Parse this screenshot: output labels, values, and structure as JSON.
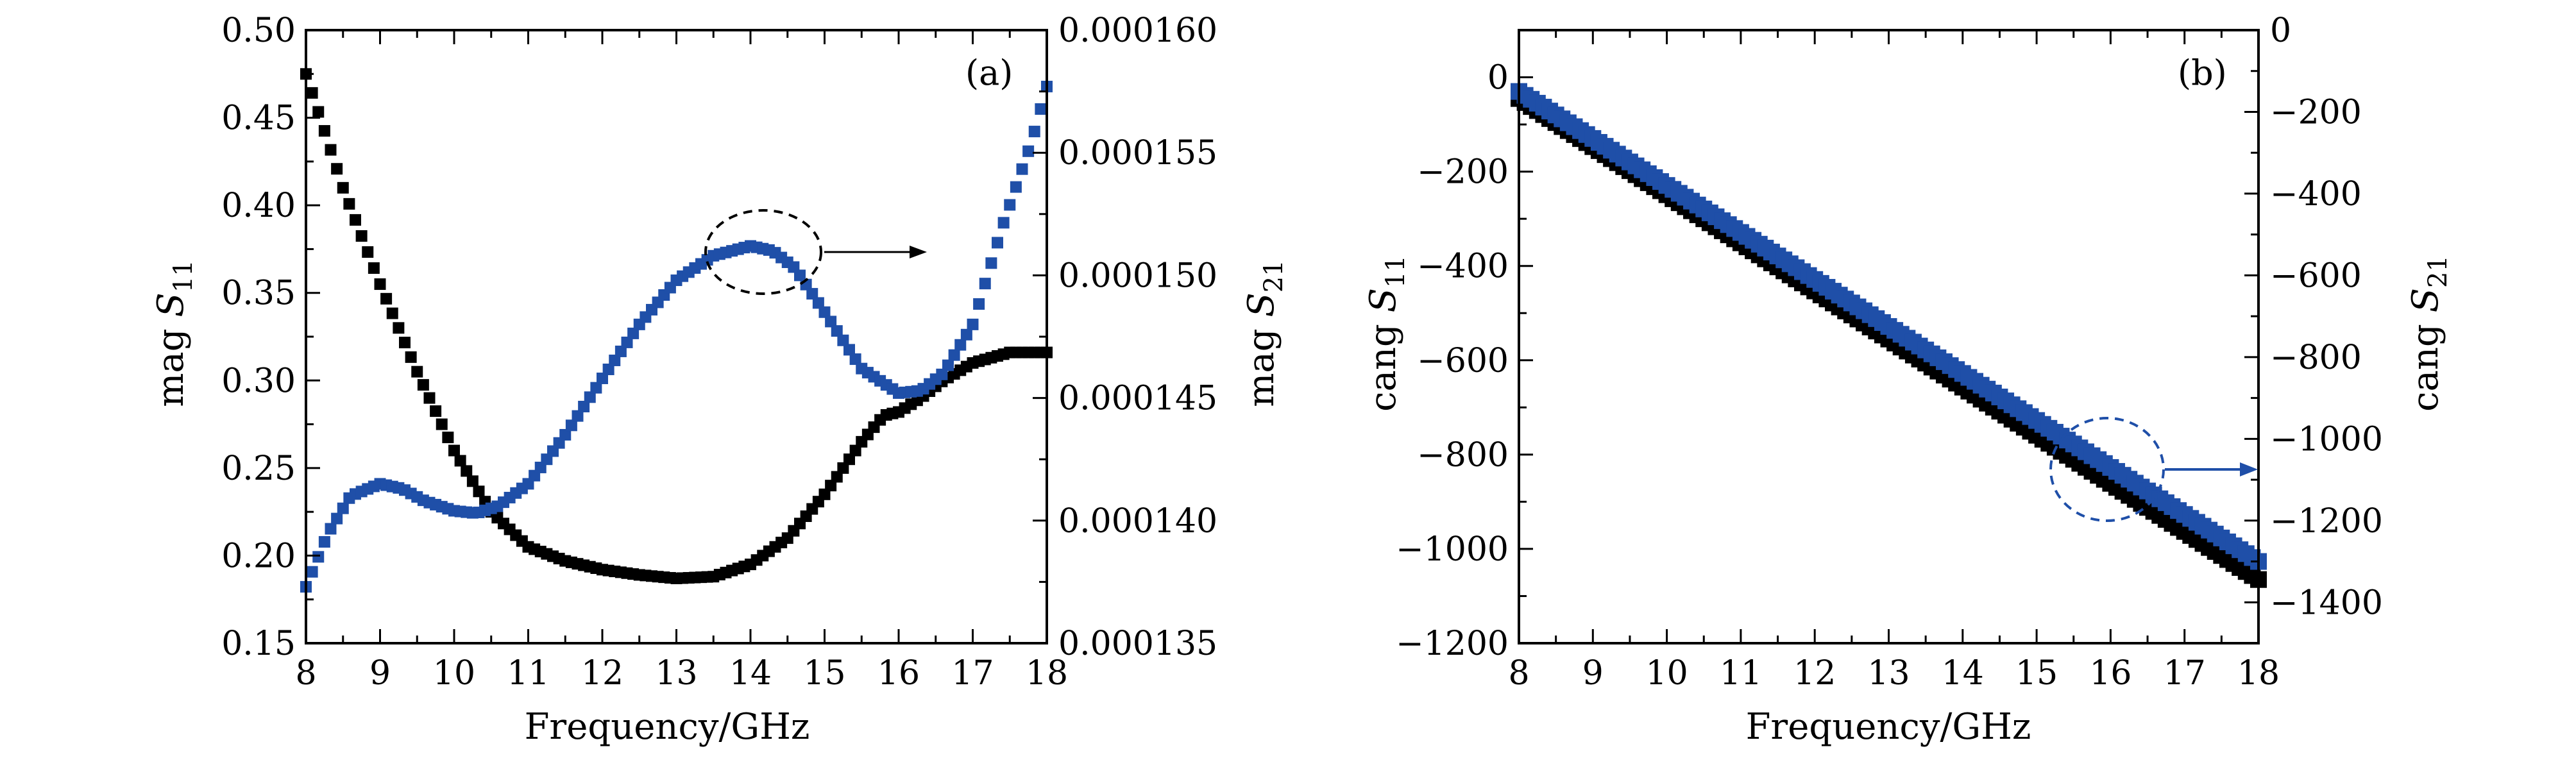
{
  "chart_data": [
    {
      "panel": "(a)",
      "type": "scatter",
      "xlabel": "Frequency/GHz",
      "ylabel_left": {
        "base": "mag ",
        "var": "S",
        "sub": "11"
      },
      "ylabel_right": {
        "base": "mag ",
        "var": "S",
        "sub": "21"
      },
      "xlim": [
        8,
        18
      ],
      "ylim_left": [
        0.15,
        0.5
      ],
      "ylim_right": [
        0.000135,
        0.00016
      ],
      "x_ticks": [
        "8",
        "9",
        "10",
        "11",
        "12",
        "13",
        "14",
        "15",
        "16",
        "17",
        "18"
      ],
      "y_ticks_left": [
        "0.15",
        "0.20",
        "0.25",
        "0.30",
        "0.35",
        "0.40",
        "0.45",
        "0.50"
      ],
      "y_ticks_right": [
        "0.000135",
        "0.000140",
        "0.000145",
        "0.000150",
        "0.000155",
        "0.000160"
      ],
      "grid": false,
      "series": [
        {
          "axis": "left",
          "color": "#000000",
          "x": [
            8,
            8.5,
            9,
            9.5,
            10,
            10.5,
            11,
            11.5,
            12,
            12.5,
            13,
            13.5,
            14,
            14.5,
            15,
            15.5,
            15.8,
            16,
            16.3,
            16.6,
            17,
            17.5,
            18
          ],
          "y": [
            0.475,
            0.41,
            0.355,
            0.305,
            0.26,
            0.225,
            0.205,
            0.197,
            0.192,
            0.189,
            0.187,
            0.188,
            0.195,
            0.21,
            0.235,
            0.265,
            0.28,
            0.282,
            0.29,
            0.3,
            0.31,
            0.316,
            0.316
          ]
        },
        {
          "axis": "right",
          "color": "#1f4fa8",
          "x": [
            8,
            8.3,
            8.6,
            9,
            9.3,
            9.6,
            10,
            10.3,
            10.6,
            11,
            11.5,
            12,
            12.5,
            13,
            13.5,
            14,
            14.3,
            14.6,
            15,
            15.5,
            16,
            16.3,
            16.6,
            17,
            17.4,
            17.8,
            18
          ],
          "y": [
            0.0001373,
            0.0001395,
            0.000141,
            0.0001415,
            0.0001413,
            0.0001408,
            0.0001404,
            0.0001403,
            0.0001406,
            0.0001415,
            0.0001435,
            0.0001458,
            0.000148,
            0.0001498,
            0.0001508,
            0.0001512,
            0.000151,
            0.0001503,
            0.0001485,
            0.0001462,
            0.0001452,
            0.0001453,
            0.000146,
            0.000148,
            0.000152,
            0.0001555,
            0.0001577
          ]
        }
      ]
    },
    {
      "panel": "(b)",
      "type": "scatter",
      "xlabel": "Frequency/GHz",
      "ylabel_left": {
        "base": "cang ",
        "var": "S",
        "sub": "11"
      },
      "ylabel_right": {
        "base": "cang ",
        "var": "S",
        "sub": "21"
      },
      "xlim": [
        8,
        18
      ],
      "ylim_left": [
        -1200,
        100
      ],
      "ylim_right": [
        -1500,
        0
      ],
      "x_ticks": [
        "8",
        "9",
        "10",
        "11",
        "12",
        "13",
        "14",
        "15",
        "16",
        "17",
        "18"
      ],
      "y_ticks_left": [
        "−1200",
        "−1000",
        "−800",
        "−600",
        "−400",
        "−200",
        "0"
      ],
      "y_ticks_left_values": [
        -1200,
        -1000,
        -800,
        -600,
        -400,
        -200,
        0
      ],
      "y_ticks_right": [
        "−1400",
        "−1200",
        "−1000",
        "−800",
        "−600",
        "−400",
        "−200",
        "0"
      ],
      "y_ticks_right_values": [
        -1400,
        -1200,
        -1000,
        -800,
        -600,
        -400,
        -200,
        0
      ],
      "grid": false,
      "series": [
        {
          "axis": "left",
          "color": "#000000",
          "x": [
            8,
            18
          ],
          "y": [
            -45,
            -1065
          ]
        },
        {
          "axis": "right",
          "color": "#1f4fa8",
          "x": [
            8,
            18
          ],
          "y": [
            -150,
            -1300
          ]
        }
      ]
    }
  ]
}
